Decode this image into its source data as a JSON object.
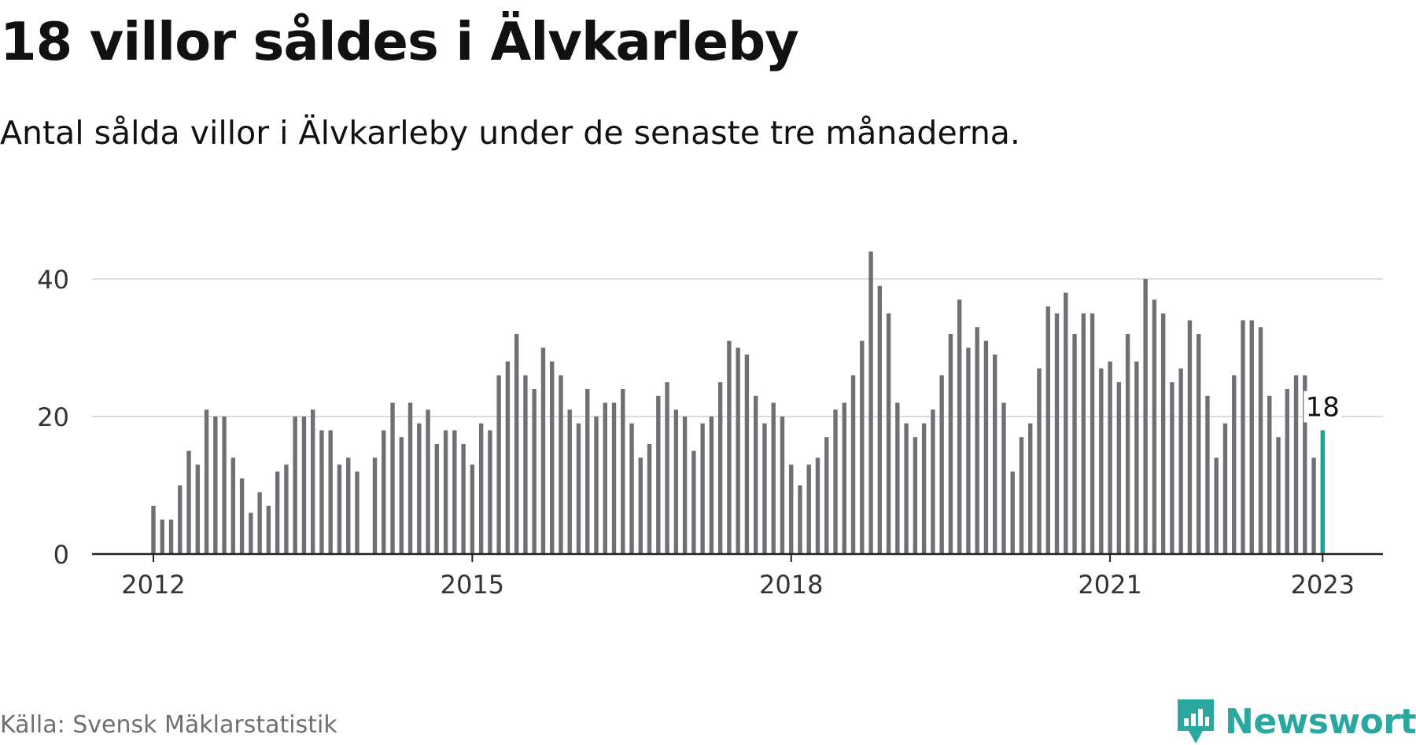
{
  "title": "18 villor såldes i Älvkarleby",
  "subtitle": "Antal sålda villor i Älvkarleby under de senaste tre månaderna.",
  "source": "Källa: Svensk Mäklarstatistik",
  "brand": "Newsworthy",
  "colors": {
    "bar": "#707074",
    "highlight": "#1aa59a",
    "grid": "#dddddd",
    "axis": "#222222",
    "brand": "#2aa89f"
  },
  "chart_data": {
    "type": "bar",
    "start": "2012-01",
    "values": [
      7,
      5,
      5,
      10,
      15,
      13,
      21,
      20,
      20,
      14,
      11,
      6,
      9,
      7,
      12,
      13,
      20,
      20,
      21,
      18,
      18,
      13,
      14,
      12,
      null,
      14,
      18,
      22,
      17,
      22,
      19,
      21,
      16,
      18,
      18,
      16,
      13,
      19,
      18,
      26,
      28,
      32,
      26,
      24,
      30,
      28,
      26,
      21,
      19,
      24,
      20,
      22,
      22,
      24,
      19,
      14,
      16,
      23,
      25,
      21,
      20,
      15,
      19,
      20,
      25,
      31,
      30,
      29,
      23,
      19,
      22,
      20,
      13,
      10,
      13,
      14,
      17,
      21,
      22,
      26,
      31,
      44,
      39,
      35,
      22,
      19,
      17,
      19,
      21,
      26,
      32,
      37,
      30,
      33,
      31,
      29,
      22,
      12,
      17,
      19,
      27,
      36,
      35,
      38,
      32,
      35,
      35,
      27,
      28,
      25,
      32,
      28,
      40,
      37,
      35,
      25,
      27,
      34,
      32,
      23,
      14,
      19,
      26,
      34,
      34,
      33,
      23,
      17,
      24,
      26,
      26,
      14,
      18
    ],
    "x_ticks": [
      "2012",
      "2015",
      "2018",
      "2021",
      "2023"
    ],
    "y_ticks": [
      0,
      20,
      40
    ],
    "ylim": [
      0,
      46
    ],
    "highlight": {
      "label": "18",
      "value": 18
    },
    "grid": true,
    "legend": "none"
  }
}
